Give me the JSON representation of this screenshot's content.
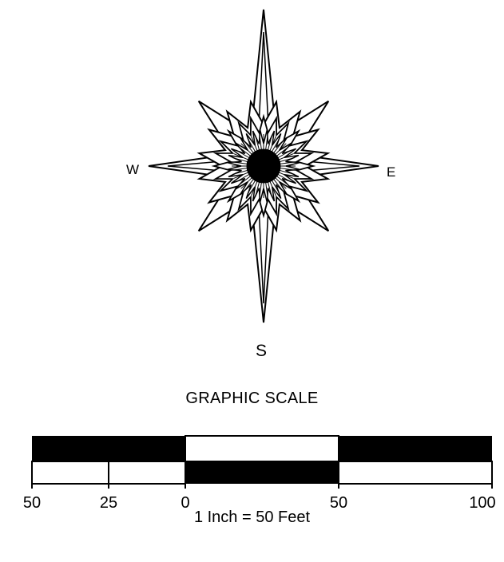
{
  "compass": {
    "west_label": "W",
    "east_label": "E",
    "south_label": "S"
  },
  "scale": {
    "title": "GRAPHIC SCALE",
    "ticks": [
      "50",
      "25",
      "0",
      "50",
      "100"
    ],
    "ratio_text": "1 Inch = 50 Feet",
    "colors": {
      "dark": "#000000",
      "light": "#ffffff"
    }
  }
}
